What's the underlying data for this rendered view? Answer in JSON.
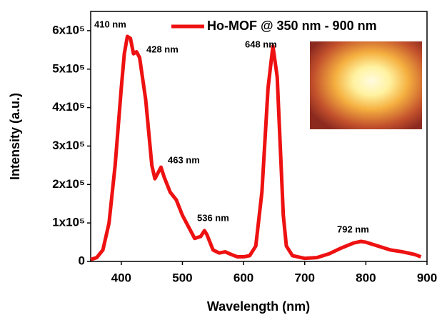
{
  "chart_data": {
    "type": "line",
    "x_label": "Wavelength (nm)",
    "y_label": "Intensity (a.u.)",
    "x": [
      350,
      360,
      370,
      380,
      390,
      400,
      405,
      410,
      415,
      420,
      425,
      430,
      440,
      450,
      455,
      460,
      465,
      470,
      480,
      490,
      500,
      510,
      520,
      530,
      536,
      540,
      550,
      560,
      570,
      580,
      590,
      600,
      610,
      620,
      630,
      640,
      648,
      655,
      660,
      665,
      670,
      680,
      700,
      720,
      740,
      760,
      780,
      792,
      800,
      820,
      840,
      860,
      880,
      890
    ],
    "series": [
      {
        "name": "Ho-MOF @ 350 nm - 900 nm",
        "color": "#ee1111",
        "values": [
          5000,
          10000,
          30000,
          100000,
          250000,
          450000,
          540000,
          585000,
          580000,
          540000,
          545000,
          530000,
          420000,
          250000,
          215000,
          230000,
          245000,
          220000,
          180000,
          160000,
          120000,
          90000,
          60000,
          65000,
          80000,
          70000,
          30000,
          22000,
          25000,
          18000,
          12000,
          12000,
          15000,
          40000,
          180000,
          450000,
          560000,
          480000,
          300000,
          120000,
          40000,
          15000,
          8000,
          10000,
          20000,
          35000,
          48000,
          52000,
          50000,
          40000,
          30000,
          25000,
          18000,
          12000
        ]
      }
    ],
    "xlim": [
      350,
      900
    ],
    "xticks": [
      400,
      500,
      600,
      700,
      800,
      900
    ],
    "ylim": [
      0,
      650000
    ],
    "yticks": [
      0,
      {
        "value": 100000,
        "label": "1x10⁵"
      },
      {
        "value": 200000,
        "label": "2x10⁵"
      },
      {
        "value": 300000,
        "label": "3x10⁵"
      },
      {
        "value": 400000,
        "label": "4x10⁵"
      },
      {
        "value": 500000,
        "label": "5x10⁵"
      },
      {
        "value": 600000,
        "label": "6x10⁵"
      }
    ],
    "annotations": [
      "410 nm",
      "428 nm",
      "463 nm",
      "536 nm",
      "648 nm",
      "792 nm"
    ],
    "legend": "upper right"
  }
}
